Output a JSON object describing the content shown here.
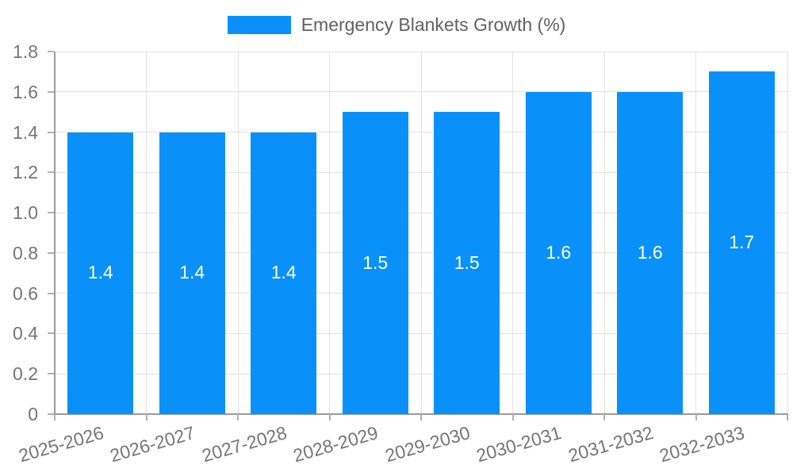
{
  "colors": {
    "bar": "#0991f9",
    "grid": "#e2e2e2",
    "axis": "#9a9a9a",
    "tick": "#b0b0b0",
    "tick_text": "#757575",
    "legend_text": "#616161",
    "bar_label": "#ffffff",
    "background": "#ffffff"
  },
  "chart_data": {
    "type": "bar",
    "title": "",
    "legend": "Emergency Blankets Growth (%)",
    "legend_position": "top",
    "grid": true,
    "categories": [
      "2025-2026",
      "2026-2027",
      "2027-2028",
      "2028-2029",
      "2029-2030",
      "2030-2031",
      "2031-2032",
      "2032-2033"
    ],
    "values": [
      1.4,
      1.4,
      1.4,
      1.5,
      1.5,
      1.6,
      1.6,
      1.7
    ],
    "bar_labels": [
      "1.4",
      "1.4",
      "1.4",
      "1.5",
      "1.5",
      "1.6",
      "1.6",
      "1.7"
    ],
    "xlabel": "",
    "ylabel": "",
    "ylim": [
      0,
      1.8
    ],
    "ytick_step": 0.2,
    "ytick_labels": [
      "0",
      "0.2",
      "0.4",
      "0.6",
      "0.8",
      "1.0",
      "1.2",
      "1.4",
      "1.6",
      "1.8"
    ]
  }
}
